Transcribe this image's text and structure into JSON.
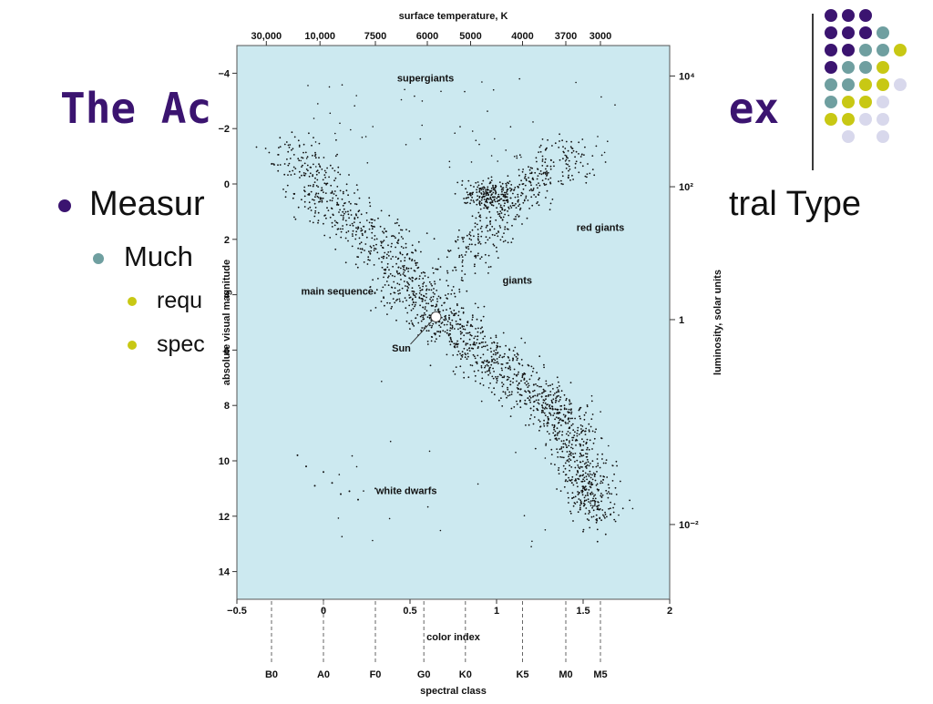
{
  "slide": {
    "title_left": "The Ac",
    "title_right": "dex",
    "bullets": [
      {
        "level": 1,
        "text": "Measur",
        "tail": "tral Type"
      },
      {
        "level": 2,
        "text": "Much"
      },
      {
        "level": 3,
        "text": "requ"
      },
      {
        "level": 3,
        "text": "spec"
      }
    ],
    "colors": {
      "title": "#3b1470",
      "bullet1": "#3b1470",
      "bullet2": "#6f9fa0",
      "bullet3": "#c8c814",
      "plot_bg": "#cce9f0"
    },
    "decor_dots": [
      [
        "#3b1470",
        "#3b1470",
        "#3b1470",
        ""
      ],
      [
        "#3b1470",
        "#3b1470",
        "#3b1470",
        "#6f9fa0"
      ],
      [
        "#3b1470",
        "#3b1470",
        "#6f9fa0",
        "#6f9fa0",
        "#c8c814"
      ],
      [
        "#3b1470",
        "#6f9fa0",
        "#6f9fa0",
        "#c8c814"
      ],
      [
        "#6f9fa0",
        "#6f9fa0",
        "#c8c814",
        "#c8c814",
        "#d8d8ec"
      ],
      [
        "#6f9fa0",
        "#c8c814",
        "#c8c814",
        "#d8d8ec"
      ],
      [
        "#c8c814",
        "#c8c814",
        "#d8d8ec",
        "#d8d8ec"
      ],
      [
        "",
        "#d8d8ec",
        "",
        "#d8d8ec"
      ]
    ]
  },
  "chart_data": {
    "type": "scatter",
    "title": "",
    "xlabel": "color index",
    "ylabel": "absolute visual magnitude",
    "xlim": [
      -0.5,
      2
    ],
    "ylim": [
      15,
      -5
    ],
    "x_ticks": [
      "−0.5",
      "0",
      "0.5",
      "1",
      "1.5",
      "2"
    ],
    "y_ticks": [
      "−4",
      "−2",
      "0",
      "2",
      "4",
      "6",
      "8",
      "10",
      "12",
      "14"
    ],
    "top_axis": {
      "label": "surface temperature, K",
      "ticks": [
        "30,000",
        "10,000",
        "7500",
        "6000",
        "5000",
        "4000",
        "3700",
        "3000"
      ]
    },
    "right_axis": {
      "label": "luminosity, solar units",
      "ticks": [
        "10⁴",
        "10²",
        "1",
        "10⁻²"
      ]
    },
    "bottom_classes": {
      "label": "spectral class",
      "ticks": [
        "B0",
        "A0",
        "F0",
        "G0",
        "K0",
        "K5",
        "M0",
        "M5"
      ],
      "x": [
        -0.3,
        0.0,
        0.3,
        0.58,
        0.82,
        1.15,
        1.4,
        1.6
      ]
    },
    "regions": [
      "supergiants",
      "red giants",
      "giants",
      "main sequence",
      "white dwarfs"
    ],
    "sun": {
      "label": "Sun",
      "x": 0.65,
      "y": 4.8
    },
    "main_sequence_band": [
      [
        -0.2,
        -1.5
      ],
      [
        0.0,
        0.5
      ],
      [
        0.3,
        2.0
      ],
      [
        0.5,
        3.5
      ],
      [
        0.65,
        4.8
      ],
      [
        0.9,
        6.0
      ],
      [
        1.2,
        7.5
      ],
      [
        1.4,
        8.5
      ],
      [
        1.5,
        10.5
      ],
      [
        1.6,
        12.0
      ]
    ],
    "giant_branch": [
      [
        0.8,
        3.0
      ],
      [
        0.95,
        1.5
      ],
      [
        1.1,
        0.5
      ],
      [
        1.3,
        -0.5
      ],
      [
        1.5,
        -1.0
      ]
    ],
    "white_dwarfs": [
      [
        -0.15,
        9.8
      ],
      [
        -0.1,
        10.2
      ],
      [
        0.0,
        10.4
      ],
      [
        0.05,
        10.8
      ],
      [
        0.1,
        11.2
      ],
      [
        0.2,
        11.4
      ],
      [
        0.3,
        11.0
      ],
      [
        -0.05,
        10.9
      ],
      [
        0.15,
        11.1
      ]
    ]
  }
}
